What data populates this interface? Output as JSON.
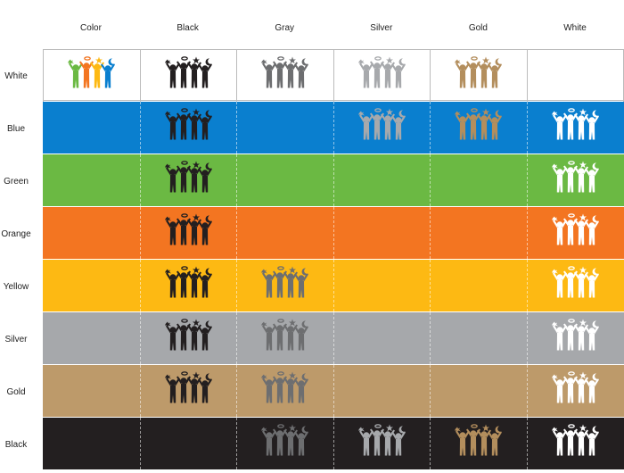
{
  "columns": [
    {
      "label": "Color",
      "key": "color"
    },
    {
      "label": "Black",
      "key": "black"
    },
    {
      "label": "Gray",
      "key": "gray"
    },
    {
      "label": "Silver",
      "key": "silver"
    },
    {
      "label": "Gold",
      "key": "gold"
    },
    {
      "label": "White",
      "key": "white"
    }
  ],
  "rows": [
    {
      "label": "White",
      "bg": "#ffffff",
      "logos": [
        "color",
        "black",
        "gray",
        "silver",
        "gold",
        null
      ]
    },
    {
      "label": "Blue",
      "bg": "#0a7fcf",
      "logos": [
        null,
        "black",
        null,
        "silver",
        "gold",
        "white"
      ]
    },
    {
      "label": "Green",
      "bg": "#6bb943",
      "logos": [
        null,
        "black",
        null,
        null,
        null,
        "white"
      ]
    },
    {
      "label": "Orange",
      "bg": "#f37521",
      "logos": [
        null,
        "black",
        null,
        null,
        null,
        "white"
      ]
    },
    {
      "label": "Yellow",
      "bg": "#fdb913",
      "logos": [
        null,
        "black",
        "gray",
        null,
        null,
        "white"
      ]
    },
    {
      "label": "Silver",
      "bg": "#a6a8ab",
      "logos": [
        null,
        "black",
        "gray",
        null,
        null,
        "white"
      ]
    },
    {
      "label": "Gold",
      "bg": "#bd9a6a",
      "logos": [
        null,
        "black",
        "gray",
        null,
        null,
        "white"
      ]
    },
    {
      "label": "Black",
      "bg": "#231f20",
      "logos": [
        null,
        null,
        "gray",
        "silver",
        "gold",
        "white"
      ]
    }
  ],
  "logo_colors": {
    "black": "#231f20",
    "gray": "#6d6e70",
    "silver": "#a7a9ac",
    "gold": "#b38e5d",
    "white": "#ffffff",
    "color": [
      "#6bb943",
      "#f37521",
      "#fdb913",
      "#0a7fcf"
    ]
  },
  "icon": "people-group-logo-icon"
}
